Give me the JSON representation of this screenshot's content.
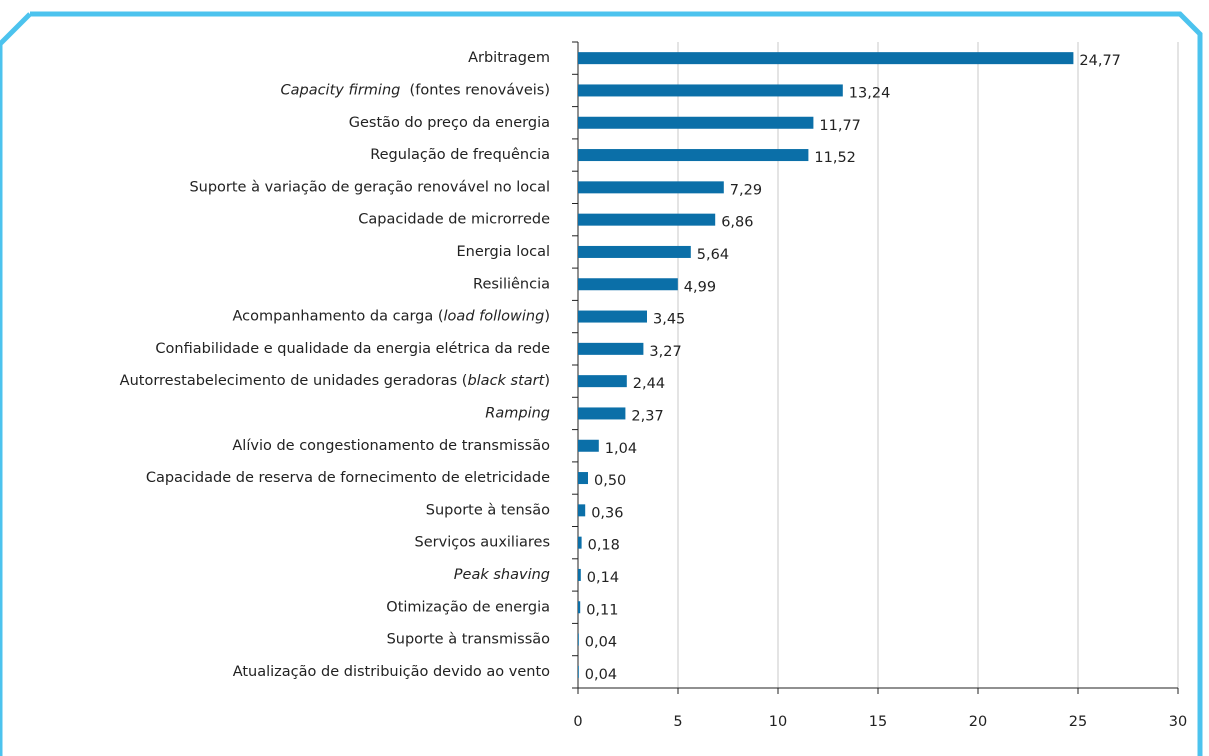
{
  "chart_data": {
    "type": "barh",
    "categories": [
      "Arbitragem",
      [
        {
          "text": "Capacity firming",
          "italic": true
        },
        {
          "text": "  (fontes renováveis)"
        }
      ],
      "Gestão do preço da energia",
      "Regulação de frequência",
      "Suporte à variação de geração renovável no local",
      "Capacidade de microrrede",
      "Energia local",
      "Resiliência",
      [
        {
          "text": "Acompanhamento da carga ("
        },
        {
          "text": "load following",
          "italic": true
        },
        {
          "text": ")"
        }
      ],
      "Confiabilidade e qualidade da energia elétrica da rede",
      [
        {
          "text": "Autorrestabelecimento de unidades geradoras ("
        },
        {
          "text": "black start",
          "italic": true
        },
        {
          "text": ")"
        }
      ],
      [
        {
          "text": "Ramping",
          "italic": true
        }
      ],
      "Alívio de congestionamento de transmissão",
      "Capacidade de reserva de fornecimento de eletricidade",
      "Suporte à tensão",
      "Serviços auxiliares",
      [
        {
          "text": "Peak shaving",
          "italic": true
        }
      ],
      "Otimização de energia",
      "Suporte à transmissão",
      "Atualização de distribuição devido ao vento"
    ],
    "values": [
      24.77,
      13.24,
      11.77,
      11.52,
      7.29,
      6.86,
      5.64,
      4.99,
      3.45,
      3.27,
      2.44,
      2.37,
      1.04,
      0.5,
      0.36,
      0.18,
      0.14,
      0.11,
      0.04,
      0.04
    ],
    "value_labels": [
      "24,77",
      "13,24",
      "11,77",
      "11,52",
      "7,29",
      "6,86",
      "5,64",
      "4,99",
      "3,45",
      "3,27",
      "2,44",
      "2,37",
      "1,04",
      "0,50",
      "0,36",
      "0,18",
      "0,14",
      "0,11",
      "0,04",
      "0,04"
    ],
    "color": "#0b6fa8",
    "xlim": [
      0,
      30
    ],
    "xticks": [
      0,
      5,
      10,
      15,
      20,
      25,
      30
    ],
    "grid": true
  }
}
